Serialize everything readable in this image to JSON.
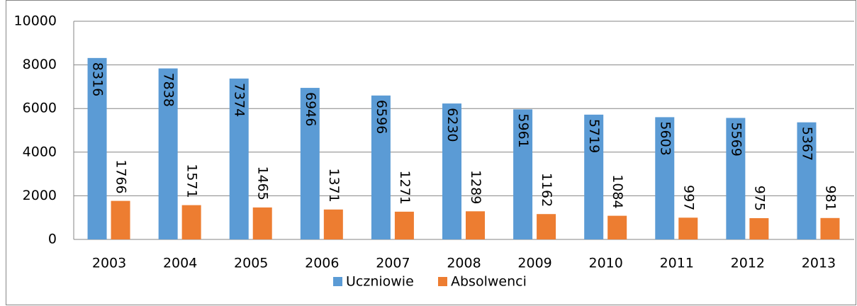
{
  "chart_data": {
    "type": "bar",
    "categories": [
      "2003",
      "2004",
      "2005",
      "2006",
      "2007",
      "2008",
      "2009",
      "2010",
      "2011",
      "2012",
      "2013"
    ],
    "series": [
      {
        "name": "Uczniowie",
        "color": "#5b9bd5",
        "values": [
          8316,
          7838,
          7374,
          6946,
          6596,
          6230,
          5961,
          5719,
          5603,
          5569,
          5367
        ]
      },
      {
        "name": "Absolwenci",
        "color": "#ed7d31",
        "values": [
          1766,
          1571,
          1465,
          1371,
          1271,
          1289,
          1162,
          1084,
          997,
          975,
          981
        ]
      }
    ],
    "ylim": [
      0,
      10000
    ],
    "yticks": [
      0,
      2000,
      4000,
      6000,
      8000,
      10000
    ],
    "grid": true,
    "legend": "bottom"
  }
}
